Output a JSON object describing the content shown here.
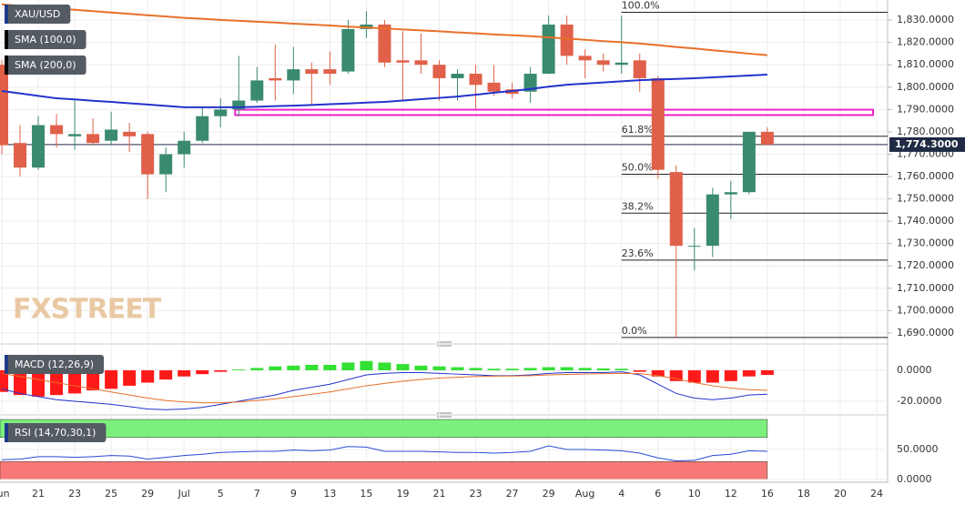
{
  "chart_data": [
    {
      "type": "candlestick",
      "name": "XAU/USD",
      "legend_color": "#1f3a8a",
      "up_color": "#3a8a70",
      "down_color": "#e0604a",
      "open": [
        1810,
        1775,
        1764,
        1783,
        1778,
        1779,
        1776,
        1780,
        1779,
        1761,
        1770,
        1776,
        1787,
        1790,
        1794,
        1804,
        1803,
        1808,
        1808,
        1807,
        1826,
        1828,
        1812,
        1812,
        1810,
        1804,
        1806,
        1802,
        1799,
        1798,
        1806,
        1828,
        1814,
        1812,
        1810,
        1812,
        1804,
        1762,
        1729,
        1729,
        1752,
        1753,
        1780
      ],
      "high": [
        1812,
        1783,
        1787,
        1788,
        1794,
        1786,
        1789,
        1784,
        1780,
        1773,
        1780,
        1791,
        1795,
        1814,
        1809,
        1819,
        1818,
        1811,
        1816,
        1830,
        1834,
        1830,
        1825,
        1824,
        1812,
        1808,
        1810,
        1810,
        1802,
        1809,
        1832,
        1832,
        1817,
        1815,
        1832,
        1815,
        1805,
        1765,
        1737,
        1755,
        1758,
        1780,
        1782
      ],
      "low": [
        1770,
        1760,
        1763,
        1773,
        1772,
        1774,
        1774,
        1771,
        1750,
        1753,
        1764,
        1775,
        1782,
        1787,
        1793,
        1794,
        1797,
        1792,
        1801,
        1806,
        1822,
        1809,
        1794,
        1806,
        1794,
        1794,
        1790,
        1796,
        1795,
        1793,
        1806,
        1810,
        1804,
        1807,
        1806,
        1798,
        1759,
        1688,
        1718,
        1724,
        1741,
        1752,
        1774
      ],
      "close": [
        1774,
        1764,
        1783,
        1779,
        1779,
        1775,
        1781,
        1778,
        1761,
        1770,
        1776,
        1787,
        1790,
        1794,
        1803,
        1803,
        1808,
        1806,
        1806,
        1826,
        1828,
        1811,
        1811,
        1810,
        1804,
        1806,
        1801,
        1798,
        1797,
        1806,
        1828,
        1814,
        1812,
        1810,
        1811,
        1804,
        1763,
        1729,
        1729,
        1752,
        1753,
        1780,
        1774.3
      ],
      "series": [
        {
          "name": "SMA (100,0)",
          "color": "#2233cc",
          "values": [
            1798.3,
            1797.2,
            1796.1,
            1795,
            1794.5,
            1793.9,
            1793.4,
            1792.8,
            1792.2,
            1791.6,
            1791,
            1791,
            1791,
            1791,
            1791.2,
            1791.5,
            1791.7,
            1792,
            1792.4,
            1792.7,
            1793.1,
            1793.4,
            1794,
            1794.6,
            1795.2,
            1795.8,
            1796.6,
            1797.5,
            1798.3,
            1799.2,
            1800.2,
            1801.1,
            1801.6,
            1802.1,
            1802.6,
            1803.1,
            1803.4,
            1803.7,
            1804,
            1804.4,
            1804.8,
            1805.2,
            1805.6
          ]
        },
        {
          "name": "SMA (200,0)",
          "color": "#e8702a",
          "values": [
            1837,
            1836.4,
            1835.8,
            1835.2,
            1834.6,
            1834,
            1833.4,
            1832.8,
            1832.2,
            1831.6,
            1831,
            1830.6,
            1830.1,
            1829.7,
            1829.3,
            1828.9,
            1828.4,
            1828,
            1827.6,
            1827.1,
            1826.7,
            1826.3,
            1825.8,
            1825.4,
            1825,
            1824.5,
            1824.1,
            1823.6,
            1823.2,
            1822.8,
            1822.3,
            1821.7,
            1821.2,
            1820.6,
            1820.1,
            1819.5,
            1818.8,
            1818,
            1817.3,
            1816.5,
            1815.8,
            1815,
            1814.3
          ]
        }
      ],
      "xlim": [
        -0.1,
        48.6
      ],
      "xticks": [
        {
          "value": 0,
          "label": "Jun"
        },
        {
          "value": 2,
          "label": "21"
        },
        {
          "value": 4,
          "label": "23"
        },
        {
          "value": 6,
          "label": "25"
        },
        {
          "value": 8,
          "label": "29"
        },
        {
          "value": 10,
          "label": "Jul"
        },
        {
          "value": 12,
          "label": "5"
        },
        {
          "value": 14,
          "label": "7"
        },
        {
          "value": 16,
          "label": "9"
        },
        {
          "value": 18,
          "label": "13"
        },
        {
          "value": 20,
          "label": "15"
        },
        {
          "value": 22,
          "label": "19"
        },
        {
          "value": 24,
          "label": "21"
        },
        {
          "value": 26,
          "label": "23"
        },
        {
          "value": 28,
          "label": "27"
        },
        {
          "value": 30,
          "label": "29"
        },
        {
          "value": 32,
          "label": "Aug"
        },
        {
          "value": 34,
          "label": "4"
        },
        {
          "value": 36,
          "label": "6"
        },
        {
          "value": 38,
          "label": "10"
        },
        {
          "value": 40,
          "label": "12"
        },
        {
          "value": 42,
          "label": "16"
        },
        {
          "value": 44,
          "label": "18"
        },
        {
          "value": 46,
          "label": "20"
        },
        {
          "value": 48,
          "label": "24"
        }
      ],
      "ylim": [
        1686.3,
        1839
      ],
      "yticks": [
        {
          "value": 1690,
          "label": "1,690.0000"
        },
        {
          "value": 1700,
          "label": "1,700.0000"
        },
        {
          "value": 1710,
          "label": "1,710.0000"
        },
        {
          "value": 1720,
          "label": "1,720.0000"
        },
        {
          "value": 1730,
          "label": "1,730.0000"
        },
        {
          "value": 1740,
          "label": "1,740.0000"
        },
        {
          "value": 1750,
          "label": "1,750.0000"
        },
        {
          "value": 1760,
          "label": "1,760.0000"
        },
        {
          "value": 1770,
          "label": "1,770.0000"
        },
        {
          "value": 1780,
          "label": "1,780.0000"
        },
        {
          "value": 1790,
          "label": "1,790.0000"
        },
        {
          "value": 1800,
          "label": "1,800.0000"
        },
        {
          "value": 1810,
          "label": "1,810.0000"
        },
        {
          "value": 1820,
          "label": "1,820.0000"
        },
        {
          "value": 1830,
          "label": "1,830.0000"
        }
      ],
      "fib_start": 34,
      "fib_levels": [
        {
          "name": "100.0%",
          "value": 1833.5
        },
        {
          "name": "61.8%",
          "value": 1778
        },
        {
          "name": "50.0%",
          "value": 1761
        },
        {
          "name": "38.2%",
          "value": 1743.6
        },
        {
          "name": "23.6%",
          "value": 1722.6
        },
        {
          "name": "0.0%",
          "value": 1688
        }
      ],
      "zone": {
        "x": [
          12.8,
          47.8
        ],
        "y": [
          1787.5,
          1789.9
        ],
        "color": "#ee22cc"
      },
      "last_price": {
        "value": 1774.3,
        "label": "1,774.3000",
        "color": "#1f2a44"
      },
      "watermark": "FXSTREET",
      "grid": true
    },
    {
      "type": "macd",
      "name": "MACD (12,26,9)",
      "legend_color": "#1f3a8a",
      "histogram": [
        -14,
        -16,
        -17,
        -16,
        -15,
        -13,
        -12,
        -10,
        -8,
        -6,
        -4,
        -2.5,
        -1,
        0.5,
        1.5,
        2.5,
        3,
        3.5,
        3.5,
        5,
        6,
        5,
        4,
        3,
        2.5,
        2,
        1.5,
        1,
        1,
        1.5,
        2,
        2,
        1.5,
        1.2,
        1,
        -1,
        -4,
        -7,
        -8,
        -8,
        -7,
        -4,
        -3
      ],
      "up_color": "#33e033",
      "down_color": "#ff1a1a",
      "macd": [
        -12,
        -15,
        -17,
        -19,
        -20,
        -21,
        -22,
        -23.5,
        -25,
        -25.5,
        -25,
        -24,
        -22,
        -20,
        -18,
        -16,
        -13,
        -11,
        -9,
        -6,
        -3,
        -2,
        -1.5,
        -1.5,
        -2,
        -2.5,
        -3,
        -3.5,
        -3.5,
        -3,
        -2,
        -1.5,
        -1.5,
        -1.5,
        -1,
        -3,
        -9,
        -15,
        -18,
        -19,
        -18,
        -16,
        -15.5
      ],
      "signal": [
        -2,
        -4,
        -6,
        -8,
        -10,
        -12,
        -14,
        -16,
        -18,
        -19.5,
        -20.5,
        -21,
        -21,
        -20.5,
        -19.5,
        -18.5,
        -17,
        -15.5,
        -14,
        -12,
        -10,
        -8.5,
        -7,
        -6,
        -5,
        -4.5,
        -4,
        -3.8,
        -3.7,
        -3.5,
        -3,
        -2.7,
        -2.4,
        -2.2,
        -2,
        -2.2,
        -3.5,
        -5.5,
        -8,
        -10,
        -11.5,
        -12.5,
        -13
      ],
      "macd_color": "#2233cc",
      "signal_color": "#e8702a",
      "ylim": [
        -26.5,
        12.9
      ],
      "yticks": [
        {
          "value": 0,
          "label": "0.0000"
        },
        {
          "value": -20,
          "label": "-20.0000"
        }
      ]
    },
    {
      "type": "rsi",
      "name": "RSI (14,70,30,1)",
      "legend_color": "#1f3a8a",
      "color": "#2a4bd7",
      "values": [
        33,
        34,
        38,
        38,
        37,
        38,
        40,
        39,
        34,
        37,
        40,
        42,
        45,
        46,
        47,
        47,
        49,
        48,
        49,
        55,
        54,
        47,
        47,
        47,
        46,
        45,
        45,
        44,
        45,
        47,
        56,
        50,
        50,
        49,
        48,
        44,
        36,
        31,
        32,
        40,
        42,
        48,
        47
      ],
      "bands": [
        {
          "range": [
            70,
            100
          ],
          "color": "#7cf07c"
        },
        {
          "range": [
            0,
            30
          ],
          "color": "#f87878"
        }
      ],
      "ylim": [
        -1.5,
        100
      ],
      "yticks": [
        {
          "value": 0,
          "label": "0.0000"
        },
        {
          "value": 50,
          "label": "50.0000"
        }
      ]
    }
  ]
}
